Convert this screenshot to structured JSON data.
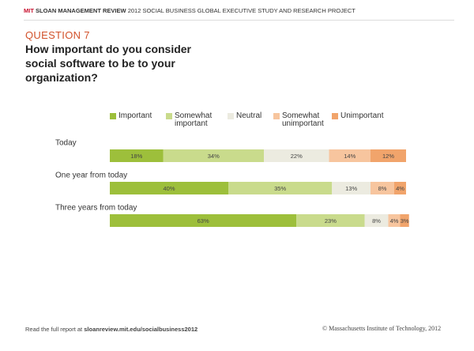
{
  "header": {
    "brand_mit": "MIT",
    "brand_rest": "SLOAN MANAGEMENT REVIEW",
    "project": "2012 SOCIAL BUSINESS GLOBAL EXECUTIVE STUDY AND RESEARCH PROJECT"
  },
  "chart_data": {
    "type": "stacked-bar-horizontal",
    "question": "QUESTION 7",
    "title": "How important do you consider social software to be to your organization?",
    "categories": [
      "Today",
      "One year from today",
      "Three years from today"
    ],
    "series": [
      {
        "name": "Important",
        "color": "#9dbf3b",
        "values": [
          18,
          40,
          63
        ],
        "value_labels": [
          "18%",
          "40%",
          "63%"
        ]
      },
      {
        "name": "Somewhat important",
        "color": "#c9db8c",
        "values": [
          34,
          35,
          23
        ],
        "value_labels": [
          "34%",
          "35%",
          "23%"
        ]
      },
      {
        "name": "Neutral",
        "color": "#ecebe0",
        "values": [
          22,
          13,
          8
        ],
        "value_labels": [
          "22%",
          "13%",
          "8%"
        ]
      },
      {
        "name": "Somewhat unimportant",
        "color": "#f7c59e",
        "values": [
          14,
          8,
          4
        ],
        "value_labels": [
          "14%",
          "8%",
          "4%"
        ]
      },
      {
        "name": "Unimportant",
        "color": "#f1a46b",
        "values": [
          12,
          4,
          3
        ],
        "value_labels": [
          "12%",
          "4%",
          "3%"
        ]
      }
    ]
  },
  "footer": {
    "lead": "Read the full report at",
    "url": "sloanreview.mit.edu/socialbusiness2012",
    "copyright": "© Massachusetts Institute of Technology, 2012"
  }
}
